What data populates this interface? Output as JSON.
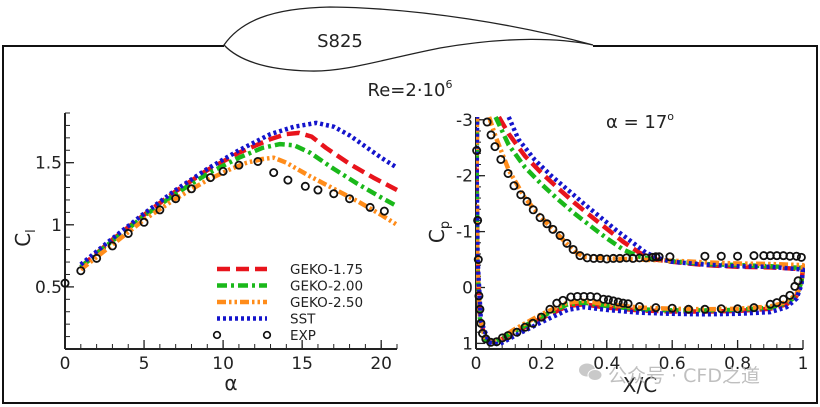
{
  "header": {
    "airfoil_label": "S825",
    "reynolds_label": "Re=2·10",
    "reynolds_exponent": "6"
  },
  "watermark": "公众号 · CFD之道",
  "colors": {
    "GEKO-1.75": "#e8141c",
    "GEKO-2.00": "#1ab81a",
    "GEKO-2.50": "#ff8c1a",
    "SST": "#1414cc",
    "EXP": "#111111"
  },
  "chart_data": [
    {
      "id": "lift",
      "type": "line",
      "title": "",
      "xlabel": "α",
      "ylabel": "C_l",
      "xlim": [
        0,
        21
      ],
      "ylim": [
        0,
        1.9
      ],
      "xticks": [
        0,
        5,
        10,
        15,
        20
      ],
      "yticks": [
        0.5,
        1,
        1.5
      ],
      "grid": false,
      "legend_position": "bottom-center",
      "series": [
        {
          "name": "GEKO-1.75",
          "style": "dashed",
          "x": [
            1,
            3,
            5,
            7,
            9,
            11,
            13,
            14,
            14.8,
            15.6,
            16.5,
            18,
            19.5,
            21
          ],
          "y": [
            0.66,
            0.88,
            1.08,
            1.27,
            1.44,
            1.58,
            1.69,
            1.73,
            1.74,
            1.71,
            1.62,
            1.49,
            1.38,
            1.28
          ]
        },
        {
          "name": "GEKO-2.00",
          "style": "dashdot",
          "x": [
            1,
            3,
            5,
            7,
            9,
            11,
            12.5,
            13.6,
            14.5,
            15.5,
            17,
            18.5,
            20,
            21
          ],
          "y": [
            0.66,
            0.87,
            1.07,
            1.25,
            1.41,
            1.54,
            1.62,
            1.65,
            1.64,
            1.58,
            1.45,
            1.33,
            1.22,
            1.15
          ]
        },
        {
          "name": "GEKO-2.50",
          "style": "dashdotdot",
          "x": [
            1,
            3,
            5,
            7,
            9,
            10.5,
            11.5,
            12.5,
            13.2,
            14,
            15.5,
            17,
            18.5,
            20,
            21
          ],
          "y": [
            0.64,
            0.84,
            1.04,
            1.21,
            1.36,
            1.45,
            1.5,
            1.53,
            1.54,
            1.5,
            1.39,
            1.29,
            1.19,
            1.08,
            1.0
          ]
        },
        {
          "name": "SST",
          "style": "dotted",
          "x": [
            1,
            3,
            5,
            7,
            9,
            11,
            13,
            14.5,
            15.9,
            17,
            18,
            19,
            20,
            21
          ],
          "y": [
            0.68,
            0.89,
            1.09,
            1.28,
            1.45,
            1.6,
            1.73,
            1.79,
            1.82,
            1.79,
            1.72,
            1.63,
            1.54,
            1.46
          ]
        },
        {
          "name": "EXP",
          "style": "markers",
          "x": [
            0,
            1,
            2,
            3,
            4,
            5,
            6,
            7,
            8,
            9.2,
            10,
            11,
            12.2,
            13.2,
            14.1,
            15.2,
            16,
            17,
            18,
            19.3,
            20.2
          ],
          "y": [
            0.53,
            0.63,
            0.73,
            0.83,
            0.93,
            1.02,
            1.12,
            1.21,
            1.29,
            1.38,
            1.43,
            1.48,
            1.51,
            1.42,
            1.36,
            1.31,
            1.28,
            1.25,
            1.21,
            1.14,
            1.11
          ]
        }
      ]
    },
    {
      "id": "pressure",
      "type": "line",
      "title": "",
      "annotation": "α = 17",
      "annotation_superscript": "o",
      "xlabel": "X/C",
      "ylabel": "C_p",
      "xlim": [
        0,
        1
      ],
      "ylim": [
        1.1,
        -3.05
      ],
      "y_inverted": true,
      "xticks": [
        0,
        0.2,
        0.4,
        0.6,
        0.8,
        1
      ],
      "xtick_labels": [
        "0",
        "0.2",
        "0.4",
        "0.6",
        "0.8",
        "1"
      ],
      "yticks": [
        -3,
        -2,
        -1,
        0,
        1
      ],
      "grid": false,
      "series": [
        {
          "name": "GEKO-1.75",
          "style": "dashed",
          "x": [
            0.07,
            0.1,
            0.15,
            0.2,
            0.25,
            0.3,
            0.35,
            0.4,
            0.45,
            0.5,
            0.55,
            0.6,
            0.7,
            0.8,
            0.9,
            1.0,
            0.995,
            0.98,
            0.95,
            0.9,
            0.8,
            0.7,
            0.6,
            0.5,
            0.4,
            0.33,
            0.28,
            0.2,
            0.12,
            0.06,
            0.03,
            0.012,
            0.004,
            0.002,
            0.003
          ],
          "y": [
            -3.05,
            -2.75,
            -2.35,
            -2.05,
            -1.78,
            -1.52,
            -1.28,
            -1.05,
            -0.82,
            -0.62,
            -0.5,
            -0.46,
            -0.4,
            -0.37,
            -0.36,
            -0.33,
            -0.1,
            0.15,
            0.3,
            0.38,
            0.42,
            0.43,
            0.43,
            0.41,
            0.36,
            0.3,
            0.33,
            0.55,
            0.8,
            0.98,
            0.95,
            0.55,
            -0.5,
            -2,
            -3.05
          ]
        },
        {
          "name": "GEKO-2.00",
          "style": "dashdot",
          "x": [
            0.06,
            0.1,
            0.15,
            0.2,
            0.25,
            0.3,
            0.35,
            0.4,
            0.45,
            0.5,
            0.55,
            0.6,
            0.7,
            0.8,
            0.9,
            1.0,
            0.995,
            0.98,
            0.95,
            0.9,
            0.8,
            0.7,
            0.6,
            0.5,
            0.4,
            0.33,
            0.28,
            0.2,
            0.12,
            0.06,
            0.03,
            0.012,
            0.004,
            0.002,
            0.003
          ],
          "y": [
            -3.05,
            -2.55,
            -2.15,
            -1.85,
            -1.58,
            -1.33,
            -1.1,
            -0.88,
            -0.68,
            -0.55,
            -0.5,
            -0.47,
            -0.42,
            -0.4,
            -0.38,
            -0.35,
            -0.1,
            0.15,
            0.28,
            0.36,
            0.4,
            0.41,
            0.41,
            0.39,
            0.33,
            0.27,
            0.3,
            0.52,
            0.78,
            0.97,
            0.94,
            0.55,
            -0.5,
            -2,
            -3.05
          ]
        },
        {
          "name": "GEKO-2.50",
          "style": "dashdotdot",
          "x": [
            0.04,
            0.06,
            0.1,
            0.15,
            0.2,
            0.25,
            0.3,
            0.33,
            0.4,
            0.5,
            0.6,
            0.7,
            0.8,
            0.9,
            1.0,
            0.995,
            0.98,
            0.95,
            0.9,
            0.8,
            0.7,
            0.6,
            0.5,
            0.4,
            0.33,
            0.28,
            0.2,
            0.12,
            0.06,
            0.03,
            0.012,
            0.004,
            0.002,
            0.003
          ],
          "y": [
            -3.05,
            -2.7,
            -2.1,
            -1.6,
            -1.25,
            -0.95,
            -0.65,
            -0.55,
            -0.52,
            -0.5,
            -0.48,
            -0.45,
            -0.43,
            -0.42,
            -0.4,
            -0.1,
            0.12,
            0.26,
            0.34,
            0.38,
            0.39,
            0.38,
            0.36,
            0.3,
            0.24,
            0.27,
            0.48,
            0.74,
            0.96,
            0.94,
            0.55,
            -0.5,
            -2,
            -3.05
          ]
        },
        {
          "name": "SST",
          "style": "dotted",
          "x": [
            0.1,
            0.13,
            0.18,
            0.23,
            0.28,
            0.33,
            0.38,
            0.43,
            0.48,
            0.52,
            0.56,
            0.6,
            0.7,
            0.8,
            0.9,
            1.0,
            0.995,
            0.98,
            0.95,
            0.9,
            0.8,
            0.7,
            0.6,
            0.5,
            0.4,
            0.33,
            0.28,
            0.2,
            0.12,
            0.07,
            0.04,
            0.015,
            0.005,
            0.002,
            0.003
          ],
          "y": [
            -3.05,
            -2.65,
            -2.28,
            -2.0,
            -1.75,
            -1.5,
            -1.26,
            -1.02,
            -0.8,
            -0.62,
            -0.52,
            -0.46,
            -0.41,
            -0.38,
            -0.37,
            -0.32,
            -0.05,
            0.2,
            0.35,
            0.44,
            0.47,
            0.48,
            0.47,
            0.45,
            0.4,
            0.35,
            0.4,
            0.62,
            0.86,
            1.02,
            0.98,
            0.6,
            -0.5,
            -2,
            -3.05
          ]
        },
        {
          "name": "EXP",
          "style": "markers",
          "x": [
            0.002,
            0.005,
            0.007,
            0.009,
            0.034,
            0.046,
            0.058,
            0.076,
            0.098,
            0.116,
            0.137,
            0.156,
            0.175,
            0.196,
            0.217,
            0.235,
            0.257,
            0.278,
            0.297,
            0.318,
            0.34,
            0.36,
            0.38,
            0.4,
            0.42,
            0.44,
            0.46,
            0.48,
            0.5,
            0.52,
            0.54,
            0.55,
            0.56,
            0.593,
            0.7,
            0.75,
            0.8,
            0.85,
            0.88,
            0.9,
            0.92,
            0.94,
            0.96,
            0.98,
            0.995,
            0.012,
            0.015,
            0.02,
            0.03,
            0.045,
            0.063,
            0.081,
            0.098,
            0.125,
            0.15,
            0.174,
            0.2,
            0.226,
            0.247,
            0.266,
            0.29,
            0.31,
            0.33,
            0.35,
            0.37,
            0.39,
            0.405,
            0.42,
            0.435,
            0.45,
            0.465,
            0.5,
            0.55,
            0.6,
            0.65,
            0.7,
            0.75,
            0.8,
            0.85,
            0.9,
            0.92,
            0.94,
            0.96,
            0.975,
            0.985
          ],
          "y": [
            -2.45,
            -1.2,
            -0.5,
            0.15,
            -2.96,
            -2.73,
            -2.52,
            -2.29,
            -2.04,
            -1.82,
            -1.66,
            -1.54,
            -1.39,
            -1.25,
            -1.14,
            -1.04,
            -0.93,
            -0.79,
            -0.68,
            -0.57,
            -0.53,
            -0.52,
            -0.52,
            -0.51,
            -0.52,
            -0.52,
            -0.53,
            -0.52,
            -0.53,
            -0.53,
            -0.54,
            -0.55,
            -0.55,
            -0.55,
            -0.56,
            -0.56,
            -0.56,
            -0.57,
            -0.57,
            -0.57,
            -0.57,
            -0.57,
            -0.56,
            -0.56,
            -0.54,
            0.39,
            0.64,
            0.82,
            0.92,
            0.98,
            0.97,
            0.9,
            0.86,
            0.8,
            0.71,
            0.64,
            0.53,
            0.39,
            0.28,
            0.23,
            0.17,
            0.16,
            0.16,
            0.16,
            0.17,
            0.21,
            0.22,
            0.24,
            0.26,
            0.28,
            0.29,
            0.34,
            0.36,
            0.37,
            0.39,
            0.39,
            0.38,
            0.38,
            0.36,
            0.3,
            0.27,
            0.21,
            0.14,
            -0.02,
            -0.12
          ]
        }
      ]
    }
  ]
}
